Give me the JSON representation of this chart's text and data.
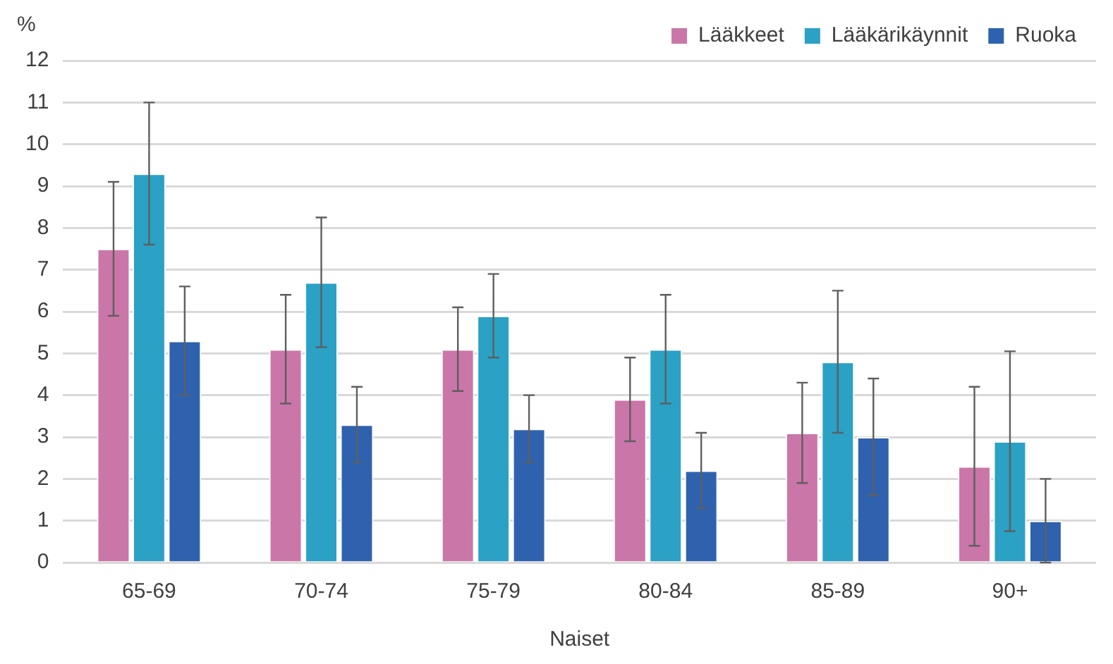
{
  "chart_data": {
    "type": "bar",
    "xlabel": "Naiset",
    "ylabel": "%",
    "categories": [
      "65-69",
      "70-74",
      "75-79",
      "80-84",
      "85-89",
      "90+"
    ],
    "series": [
      {
        "name": "Lääkkeet",
        "color": "#cb76a8",
        "values": [
          7.5,
          5.1,
          5.1,
          3.9,
          3.1,
          2.3
        ],
        "errors": [
          [
            5.9,
            9.1
          ],
          [
            3.8,
            6.4
          ],
          [
            4.1,
            6.1
          ],
          [
            2.9,
            4.9
          ],
          [
            1.9,
            4.3
          ],
          [
            0.4,
            4.2
          ]
        ]
      },
      {
        "name": "Lääkärikäynnit",
        "color": "#2aa1c5",
        "values": [
          9.3,
          6.7,
          5.9,
          5.1,
          4.8,
          2.9
        ],
        "errors": [
          [
            7.6,
            11.0
          ],
          [
            5.15,
            8.25
          ],
          [
            4.9,
            6.9
          ],
          [
            3.8,
            6.4
          ],
          [
            3.1,
            6.5
          ],
          [
            0.75,
            5.05
          ]
        ]
      },
      {
        "name": "Ruoka",
        "color": "#2f62ae",
        "values": [
          5.3,
          3.3,
          3.2,
          2.2,
          3.0,
          1.0
        ],
        "errors": [
          [
            4.0,
            6.6
          ],
          [
            2.4,
            4.2
          ],
          [
            2.4,
            4.0
          ],
          [
            1.3,
            3.1
          ],
          [
            1.6,
            4.4
          ],
          [
            0,
            2.0
          ]
        ]
      }
    ],
    "ylim": [
      0,
      12
    ],
    "yticks": [
      0,
      1,
      2,
      3,
      4,
      5,
      6,
      7,
      8,
      9,
      10,
      11,
      12
    ],
    "grid": "y",
    "legend": "top right"
  }
}
